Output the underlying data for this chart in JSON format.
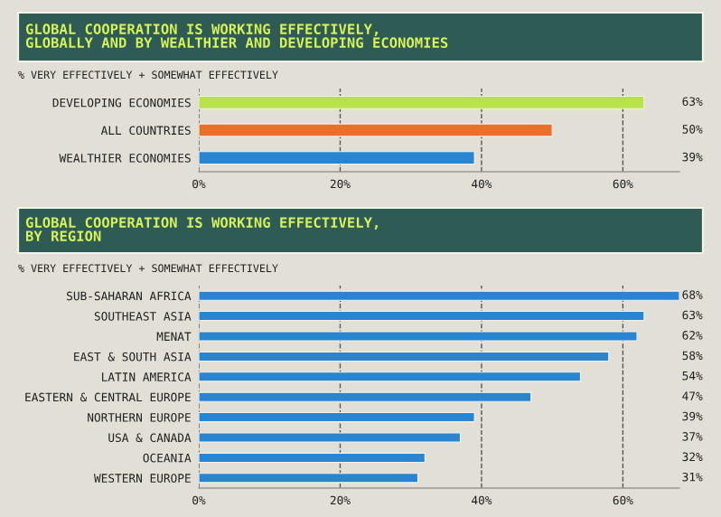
{
  "chart_data": [
    {
      "type": "bar",
      "orientation": "horizontal",
      "title": "GLOBAL COOPERATION IS WORKING EFFECTIVELY,\nGLOBALLY AND BY WEALTHIER AND DEVELOPING ECONOMIES",
      "subtitle": "% VERY EFFECTIVELY + SOMEWHAT EFFECTIVELY",
      "categories": [
        "DEVELOPING ECONOMIES",
        "ALL COUNTRIES",
        "WEALTHIER ECONOMIES"
      ],
      "values": [
        63,
        50,
        39
      ],
      "colors": [
        "#b8e24c",
        "#e8702a",
        "#2a85d0"
      ],
      "value_labels": [
        "63%",
        "50%",
        "39%"
      ],
      "xlim": [
        0,
        68
      ],
      "xticks": [
        {
          "value": 0,
          "label": "0%"
        },
        {
          "value": 20,
          "label": "20%"
        },
        {
          "value": 40,
          "label": "40%"
        },
        {
          "value": 60,
          "label": "60%"
        }
      ],
      "grid": "x"
    },
    {
      "type": "bar",
      "orientation": "horizontal",
      "title": "GLOBAL COOPERATION IS WORKING EFFECTIVELY,\nBY REGION",
      "subtitle": "% VERY EFFECTIVELY + SOMEWHAT EFFECTIVELY",
      "categories": [
        "SUB-SAHARAN AFRICA",
        "SOUTHEAST ASIA",
        "MENAT",
        "EAST & SOUTH ASIA",
        "LATIN AMERICA",
        "EASTERN & CENTRAL EUROPE",
        "NORTHERN EUROPE",
        "USA & CANADA",
        "OCEANIA",
        "WESTERN EUROPE"
      ],
      "values": [
        68,
        63,
        62,
        58,
        54,
        47,
        39,
        37,
        32,
        31
      ],
      "colors": [
        "#2a85d0",
        "#2a85d0",
        "#2a85d0",
        "#2a85d0",
        "#2a85d0",
        "#2a85d0",
        "#2a85d0",
        "#2a85d0",
        "#2a85d0",
        "#2a85d0"
      ],
      "value_labels": [
        "68%",
        "63%",
        "62%",
        "58%",
        "54%",
        "47%",
        "39%",
        "37%",
        "32%",
        "31%"
      ],
      "xlim": [
        0,
        68
      ],
      "xticks": [
        {
          "value": 0,
          "label": "0%"
        },
        {
          "value": 20,
          "label": "20%"
        },
        {
          "value": 40,
          "label": "40%"
        },
        {
          "value": 60,
          "label": "60%"
        }
      ],
      "grid": "x"
    }
  ]
}
